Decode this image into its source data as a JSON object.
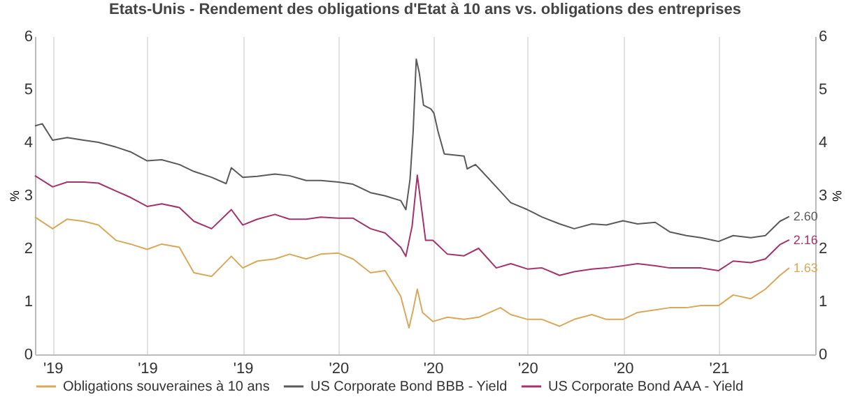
{
  "chart_data": {
    "type": "line",
    "title": "Etats-Unis - Rendement des obligations d'Etat à 10 ans vs. obligations des entreprises",
    "ylabel": "%",
    "y2label": "%",
    "xlim": [
      "2019-03-15",
      "2021-04-04"
    ],
    "xticks": [
      {
        "value": "2019-04-01",
        "label": "'19"
      },
      {
        "value": "2019-07-01",
        "label": "'19"
      },
      {
        "value": "2019-10-01",
        "label": "'19"
      },
      {
        "value": "2020-01-01",
        "label": "'20"
      },
      {
        "value": "2020-04-01",
        "label": "'20"
      },
      {
        "value": "2020-07-01",
        "label": "'20"
      },
      {
        "value": "2020-10-01",
        "label": "'20"
      },
      {
        "value": "2021-01-01",
        "label": "'21"
      }
    ],
    "ylim": [
      0,
      6
    ],
    "yticks": [
      0,
      1,
      2,
      3,
      4,
      5,
      6
    ],
    "y2lim": [
      0,
      6
    ],
    "y2ticks": [
      0,
      1,
      2,
      3,
      4,
      5,
      6
    ],
    "grid": "x",
    "legend": "bottom",
    "series": [
      {
        "name": "Obligations souveraines à 10 ans",
        "color": "#d9a95b",
        "x": [
          "2019-03-15",
          "2019-04-01",
          "2019-04-15",
          "2019-05-01",
          "2019-05-15",
          "2019-06-01",
          "2019-06-15",
          "2019-07-01",
          "2019-07-15",
          "2019-08-01",
          "2019-08-15",
          "2019-09-01",
          "2019-09-20",
          "2019-10-01",
          "2019-10-15",
          "2019-11-01",
          "2019-11-15",
          "2019-12-01",
          "2019-12-15",
          "2020-01-01",
          "2020-01-15",
          "2020-02-01",
          "2020-02-15",
          "2020-03-01",
          "2020-03-09",
          "2020-03-13",
          "2020-03-17",
          "2020-03-22",
          "2020-04-01",
          "2020-04-15",
          "2020-05-01",
          "2020-05-15",
          "2020-06-05",
          "2020-06-15",
          "2020-07-01",
          "2020-07-15",
          "2020-08-01",
          "2020-08-15",
          "2020-09-01",
          "2020-09-15",
          "2020-10-01",
          "2020-10-15",
          "2020-11-01",
          "2020-11-15",
          "2020-12-01",
          "2020-12-15",
          "2021-01-01",
          "2021-01-15",
          "2021-02-01",
          "2021-02-15",
          "2021-03-01",
          "2021-03-10"
        ],
        "values": [
          2.59,
          2.37,
          2.55,
          2.51,
          2.44,
          2.15,
          2.08,
          1.98,
          2.08,
          2.02,
          1.54,
          1.47,
          1.85,
          1.63,
          1.76,
          1.8,
          1.89,
          1.8,
          1.89,
          1.91,
          1.8,
          1.54,
          1.58,
          1.1,
          0.5,
          0.84,
          1.23,
          0.79,
          0.62,
          0.7,
          0.66,
          0.7,
          0.88,
          0.75,
          0.66,
          0.66,
          0.53,
          0.66,
          0.75,
          0.66,
          0.66,
          0.79,
          0.84,
          0.88,
          0.88,
          0.92,
          0.92,
          1.12,
          1.05,
          1.23,
          1.49,
          1.63
        ],
        "value_labels": [
          null,
          null,
          null,
          null,
          null,
          null,
          null,
          null,
          null,
          null,
          null,
          null,
          null,
          null,
          null,
          null,
          null,
          null,
          null,
          null,
          null,
          null,
          null,
          null,
          null,
          null,
          null,
          null,
          null,
          null,
          null,
          null,
          null,
          null,
          null,
          null,
          null,
          null,
          null,
          null,
          null,
          null,
          null,
          null,
          null,
          null,
          null,
          null,
          null,
          null,
          null,
          "1.63"
        ]
      },
      {
        "name": "US Corporate Bond BBB - Yield",
        "color": "#5a5a5a",
        "x": [
          "2019-03-15",
          "2019-03-22",
          "2019-04-01",
          "2019-04-15",
          "2019-05-01",
          "2019-05-15",
          "2019-06-01",
          "2019-06-15",
          "2019-07-01",
          "2019-07-15",
          "2019-08-01",
          "2019-08-15",
          "2019-09-01",
          "2019-09-15",
          "2019-09-20",
          "2019-10-01",
          "2019-10-15",
          "2019-11-01",
          "2019-11-15",
          "2019-12-01",
          "2019-12-15",
          "2020-01-01",
          "2020-01-15",
          "2020-02-01",
          "2020-02-15",
          "2020-03-01",
          "2020-03-06",
          "2020-03-10",
          "2020-03-13",
          "2020-03-16",
          "2020-03-19",
          "2020-03-23",
          "2020-03-30",
          "2020-04-02",
          "2020-04-06",
          "2020-04-12",
          "2020-05-01",
          "2020-05-04",
          "2020-05-12",
          "2020-05-15",
          "2020-06-01",
          "2020-06-15",
          "2020-07-01",
          "2020-07-15",
          "2020-08-01",
          "2020-08-15",
          "2020-09-01",
          "2020-09-15",
          "2020-10-01",
          "2020-10-15",
          "2020-11-01",
          "2020-11-15",
          "2020-12-01",
          "2020-12-15",
          "2021-01-01",
          "2021-01-15",
          "2021-02-01",
          "2021-02-15",
          "2021-03-01",
          "2021-03-10"
        ],
        "values": [
          4.31,
          4.35,
          4.04,
          4.09,
          4.04,
          4.0,
          3.91,
          3.82,
          3.65,
          3.67,
          3.58,
          3.45,
          3.34,
          3.22,
          3.52,
          3.34,
          3.36,
          3.4,
          3.37,
          3.28,
          3.28,
          3.25,
          3.21,
          3.05,
          2.99,
          2.9,
          2.73,
          3.3,
          4.2,
          5.57,
          5.3,
          4.7,
          4.63,
          4.55,
          4.2,
          3.78,
          3.74,
          3.5,
          3.58,
          3.52,
          3.16,
          2.86,
          2.73,
          2.59,
          2.46,
          2.37,
          2.46,
          2.44,
          2.52,
          2.46,
          2.49,
          2.31,
          2.24,
          2.2,
          2.13,
          2.24,
          2.2,
          2.24,
          2.51,
          2.6
        ],
        "value_labels": [
          null,
          null,
          null,
          null,
          null,
          null,
          null,
          null,
          null,
          null,
          null,
          null,
          null,
          null,
          null,
          null,
          null,
          null,
          null,
          null,
          null,
          null,
          null,
          null,
          null,
          null,
          null,
          null,
          null,
          null,
          null,
          null,
          null,
          null,
          null,
          null,
          null,
          null,
          null,
          null,
          null,
          null,
          null,
          null,
          null,
          null,
          null,
          null,
          null,
          null,
          null,
          null,
          null,
          null,
          null,
          null,
          null,
          null,
          null,
          "2.60"
        ]
      },
      {
        "name": "US Corporate Bond AAA - Yield",
        "color": "#a3336b",
        "x": [
          "2019-03-15",
          "2019-04-01",
          "2019-04-15",
          "2019-05-01",
          "2019-05-15",
          "2019-06-01",
          "2019-06-15",
          "2019-07-01",
          "2019-07-15",
          "2019-08-01",
          "2019-08-15",
          "2019-09-01",
          "2019-09-20",
          "2019-10-01",
          "2019-10-15",
          "2019-11-01",
          "2019-11-15",
          "2019-12-01",
          "2019-12-15",
          "2020-01-01",
          "2020-01-15",
          "2020-02-01",
          "2020-02-15",
          "2020-03-01",
          "2020-03-06",
          "2020-03-12",
          "2020-03-17",
          "2020-03-25",
          "2020-04-01",
          "2020-04-15",
          "2020-05-01",
          "2020-05-15",
          "2020-06-01",
          "2020-06-15",
          "2020-07-01",
          "2020-07-15",
          "2020-08-01",
          "2020-08-15",
          "2020-09-01",
          "2020-09-15",
          "2020-10-01",
          "2020-10-15",
          "2020-11-01",
          "2020-11-15",
          "2020-12-01",
          "2020-12-15",
          "2021-01-01",
          "2021-01-15",
          "2021-02-01",
          "2021-02-15",
          "2021-03-01",
          "2021-03-10"
        ],
        "values": [
          3.37,
          3.16,
          3.25,
          3.25,
          3.23,
          3.08,
          2.96,
          2.79,
          2.84,
          2.77,
          2.51,
          2.37,
          2.73,
          2.44,
          2.55,
          2.64,
          2.55,
          2.55,
          2.59,
          2.57,
          2.57,
          2.37,
          2.29,
          2.02,
          1.85,
          2.42,
          3.38,
          2.15,
          2.15,
          1.89,
          1.86,
          2.0,
          1.63,
          1.71,
          1.61,
          1.63,
          1.49,
          1.56,
          1.61,
          1.63,
          1.67,
          1.71,
          1.67,
          1.63,
          1.63,
          1.63,
          1.58,
          1.76,
          1.73,
          1.8,
          2.07,
          2.16
        ],
        "value_labels": [
          null,
          null,
          null,
          null,
          null,
          null,
          null,
          null,
          null,
          null,
          null,
          null,
          null,
          null,
          null,
          null,
          null,
          null,
          null,
          null,
          null,
          null,
          null,
          null,
          null,
          null,
          null,
          null,
          null,
          null,
          null,
          null,
          null,
          null,
          null,
          null,
          null,
          null,
          null,
          null,
          null,
          null,
          null,
          null,
          null,
          null,
          null,
          null,
          null,
          null,
          null,
          "2.16"
        ]
      }
    ]
  }
}
